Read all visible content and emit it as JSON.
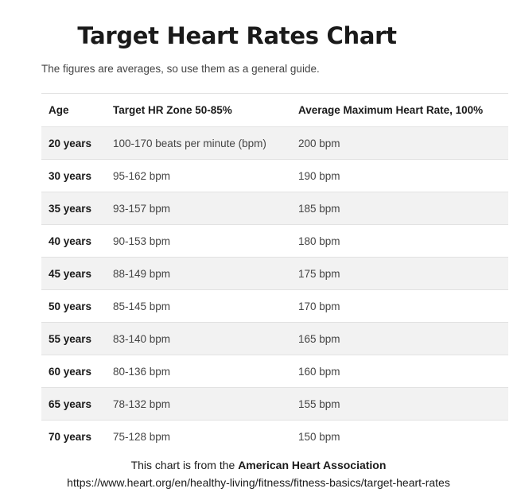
{
  "title": "Target Heart Rates Chart",
  "subtitle": "The figures are averages, so use them as a general guide.",
  "table": {
    "headers": [
      "Age",
      "Target HR Zone 50-85%",
      "Average Maximum Heart Rate, 100%"
    ],
    "rows": [
      [
        "20 years",
        "100-170 beats per minute (bpm)",
        "200 bpm"
      ],
      [
        "30 years",
        "95-162 bpm",
        "190 bpm"
      ],
      [
        "35 years",
        "93-157 bpm",
        "185 bpm"
      ],
      [
        "40 years",
        "90-153 bpm",
        "180 bpm"
      ],
      [
        "45 years",
        "88-149 bpm",
        "175 bpm"
      ],
      [
        "50 years",
        "85-145 bpm",
        "170 bpm"
      ],
      [
        "55 years",
        "83-140 bpm",
        "165 bpm"
      ],
      [
        "60 years",
        "80-136 bpm",
        "160 bpm"
      ],
      [
        "65 years",
        "78-132 bpm",
        "155 bpm"
      ],
      [
        "70 years",
        "75-128 bpm",
        "150 bpm"
      ]
    ]
  },
  "source": {
    "prefix": "This chart is from the ",
    "org": "American Heart Association",
    "url": "https://www.heart.org/en/healthy-living/fitness/fitness-basics/target-heart-rates"
  }
}
